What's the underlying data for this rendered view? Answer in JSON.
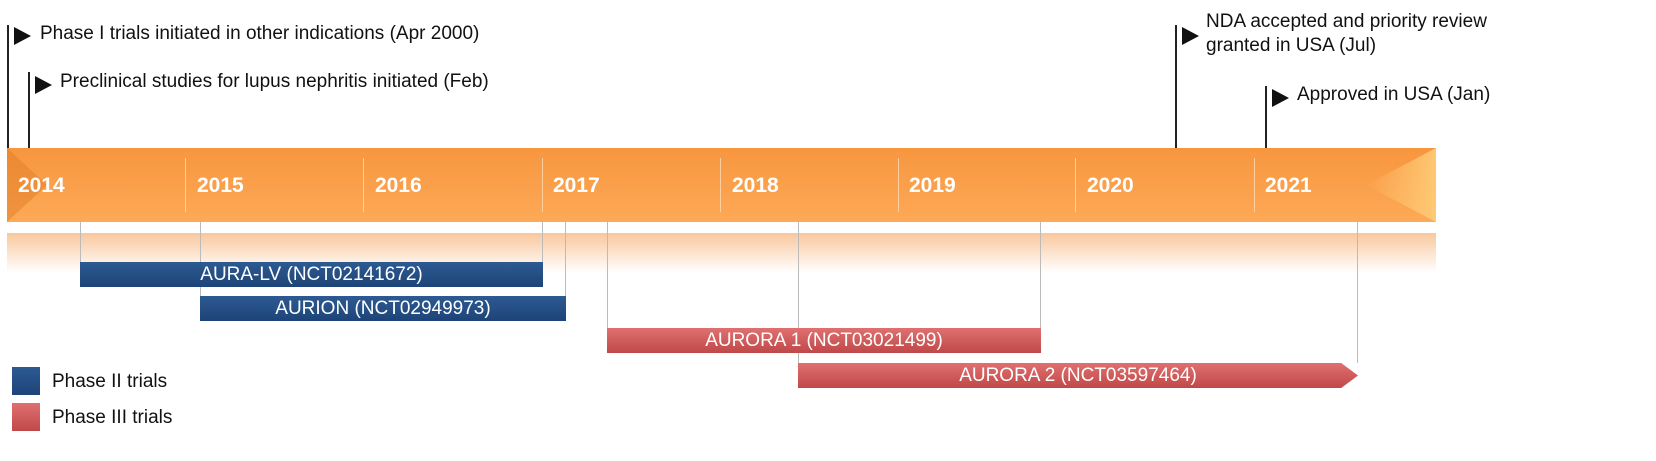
{
  "milestones": [
    {
      "text": "Phase I trials initiated in other indications (Apr 2000)"
    },
    {
      "text": "Preclinical studies for lupus nephritis initiated (Feb)"
    },
    {
      "text_line1": "NDA accepted and priority review",
      "text_line2": "granted in USA (Jul)"
    },
    {
      "text": "Approved in USA (Jan)"
    }
  ],
  "years": [
    "2014",
    "2015",
    "2016",
    "2017",
    "2018",
    "2019",
    "2020",
    "2021"
  ],
  "trials": [
    {
      "label": "AURA-LV (NCT02141672)",
      "phase": "Phase II"
    },
    {
      "label": "AURION (NCT02949973)",
      "phase": "Phase II"
    },
    {
      "label": "AURORA 1 (NCT03021499)",
      "phase": "Phase III"
    },
    {
      "label": "AURORA 2 (NCT03597464)",
      "phase": "Phase III"
    }
  ],
  "legend": [
    {
      "label": "Phase II trials",
      "color": "#1f4a82"
    },
    {
      "label": "Phase III trials",
      "color": "#cc5555"
    }
  ],
  "colors": {
    "timeline": "#f99e4a",
    "phase2": "#1f4a82",
    "phase3": "#cc5555"
  }
}
